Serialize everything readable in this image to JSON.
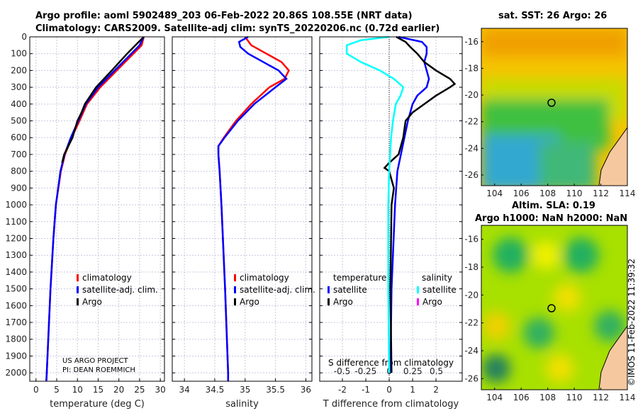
{
  "title_line1": "Argo profile: aoml 5902489_203 06-Feb-2022 20.86S 108.55E (NRT data)",
  "title_line2": "Climatology: CARS2009. Satellite-adj clim: synTS_20220206.nc (0.72d earlier)",
  "map1_title": "sat. SST: 26 Argo: 26",
  "map2_title1": "Altim. SLA: 0.19",
  "map2_title2": "Argo h1000: NaN h2000: NaN",
  "side_label": "©IMOS 11-Feb-2022 11:39:32",
  "credit1": "US ARGO PROJECT",
  "credit2": "PI: DEAN ROEMMICH",
  "colors": {
    "clim": "#ff0000",
    "sat": "#0000ff",
    "argo": "#000000",
    "sat_s": "#00ffff",
    "argo_s": "#ff00ff"
  },
  "chart_data": [
    {
      "type": "line",
      "xlabel": "temperature (deg C)",
      "xlim": [
        -1.5,
        31
      ],
      "ylim": [
        0,
        2050
      ],
      "xticks": [
        0,
        5,
        10,
        15,
        20,
        25,
        30
      ],
      "yticks": [
        0,
        100,
        200,
        300,
        400,
        500,
        600,
        700,
        800,
        900,
        1000,
        1100,
        1200,
        1300,
        1400,
        1500,
        1600,
        1700,
        1800,
        1900,
        2000
      ],
      "legend": [
        "climatology",
        "satellite-adj. clim.",
        "Argo"
      ],
      "series": [
        {
          "name": "climatology",
          "color": "#ff0000",
          "depth": [
            0,
            50,
            100,
            200,
            300,
            400,
            500,
            600,
            700,
            800,
            1000,
            1200,
            1500,
            2000,
            2050
          ],
          "values": [
            26,
            25.5,
            23.5,
            19.5,
            15.5,
            12.3,
            10.5,
            8.6,
            7.0,
            6.0,
            4.8,
            4.2,
            3.5,
            2.6,
            2.5
          ]
        },
        {
          "name": "satellite-adj. clim.",
          "color": "#0000ff",
          "depth": [
            0,
            50,
            100,
            200,
            300,
            400,
            500,
            600,
            700,
            800,
            1000,
            1200,
            1500,
            2000,
            2050
          ],
          "values": [
            26,
            25,
            23,
            19,
            15,
            12,
            10.2,
            8.4,
            6.9,
            5.9,
            4.8,
            4.2,
            3.5,
            2.6,
            2.5
          ]
        },
        {
          "name": "Argo",
          "color": "#000000",
          "depth": [
            0,
            50,
            100,
            200,
            300,
            400,
            450,
            500,
            600,
            700,
            750
          ],
          "values": [
            26,
            24,
            22,
            18.3,
            14.5,
            11.8,
            11,
            10,
            8.8,
            6.8,
            6.3
          ]
        }
      ]
    },
    {
      "type": "line",
      "xlabel": "salinity",
      "xlim": [
        33.8,
        36.1
      ],
      "ylim": [
        0,
        2050
      ],
      "xticks": [
        34,
        34.5,
        35,
        35.5,
        36
      ],
      "legend": [
        "climatology",
        "satellite-adj. clim.",
        "Argo"
      ],
      "series": [
        {
          "name": "climatology",
          "color": "#ff0000",
          "depth": [
            0,
            50,
            100,
            150,
            200,
            250,
            300,
            400,
            500,
            600,
            650,
            700,
            800,
            1000,
            1500,
            2000,
            2050
          ],
          "values": [
            35.0,
            35.1,
            35.35,
            35.6,
            35.72,
            35.65,
            35.4,
            35.1,
            34.85,
            34.65,
            34.56,
            34.56,
            34.58,
            34.61,
            34.67,
            34.72,
            34.72
          ]
        },
        {
          "name": "satellite-adj. clim.",
          "color": "#0000ff",
          "depth": [
            0,
            30,
            60,
            100,
            150,
            200,
            250,
            300,
            400,
            500,
            600,
            650,
            700,
            800,
            1000,
            1500,
            2000,
            2050
          ],
          "values": [
            35.05,
            34.9,
            34.92,
            35.05,
            35.3,
            35.55,
            35.68,
            35.5,
            35.15,
            34.88,
            34.66,
            34.56,
            34.56,
            34.58,
            34.61,
            34.67,
            34.72,
            34.72
          ]
        }
      ]
    },
    {
      "type": "line",
      "xlabel": "T difference from climatology",
      "xlabel2": "S difference from climatology",
      "xlim": [
        -2.97,
        3.12
      ],
      "ylim": [
        0,
        2050
      ],
      "xticks": [
        -2,
        -1,
        0,
        1,
        2
      ],
      "xticks2": [
        -0.5,
        -0.25,
        0,
        0.25,
        0.5
      ],
      "legend_t": "temperature",
      "legend_s": "salinity",
      "legend_items": [
        "satellite",
        "Argo",
        "satellite",
        "Argo"
      ],
      "series": [
        {
          "name": "T satellite",
          "color": "#0000ff",
          "axis": "T",
          "depth": [
            0,
            30,
            60,
            100,
            150,
            200,
            250,
            300,
            350,
            400,
            500,
            600,
            700,
            800,
            1000,
            1500,
            2000
          ],
          "values": [
            0.4,
            1.4,
            1.6,
            1.6,
            1.5,
            1.6,
            1.7,
            1.6,
            1.2,
            1.0,
            0.8,
            0.65,
            0.5,
            0.35,
            0.25,
            0.1,
            0.05
          ]
        },
        {
          "name": "T Argo",
          "color": "#000000",
          "axis": "T",
          "depth": [
            0,
            30,
            60,
            100,
            150,
            200,
            250,
            280,
            300,
            350,
            400,
            450,
            500,
            600,
            700,
            750,
            780,
            800,
            900,
            1000,
            1500,
            2000
          ],
          "values": [
            0.3,
            0.7,
            0.9,
            1.2,
            1.5,
            2.0,
            2.6,
            2.8,
            2.6,
            2.0,
            1.5,
            1.0,
            0.7,
            0.6,
            0.4,
            0.0,
            -0.2,
            0.0,
            0.2,
            0.1,
            0.05,
            0.1
          ]
        },
        {
          "name": "S satellite",
          "color": "#00ffff",
          "axis": "S",
          "depth": [
            0,
            20,
            50,
            100,
            150,
            200,
            250,
            300,
            350,
            400,
            500,
            600,
            700,
            800,
            1000,
            1500,
            2000
          ],
          "values": [
            0,
            -0.3,
            -0.45,
            -0.45,
            -0.3,
            -0.1,
            0.05,
            0.15,
            0.12,
            0.07,
            0.04,
            0.02,
            0.01,
            0,
            -0.01,
            -0.01,
            0
          ]
        }
      ]
    }
  ],
  "maps": [
    {
      "xticks": [
        104,
        106,
        108,
        110,
        112,
        114
      ],
      "yticks": [
        -16,
        -18,
        -20,
        -22,
        -24,
        -26
      ]
    },
    {
      "xticks": [
        104,
        106,
        108,
        110,
        112,
        114
      ],
      "yticks": [
        -16,
        -18,
        -20,
        -22,
        -24,
        -26
      ]
    }
  ]
}
